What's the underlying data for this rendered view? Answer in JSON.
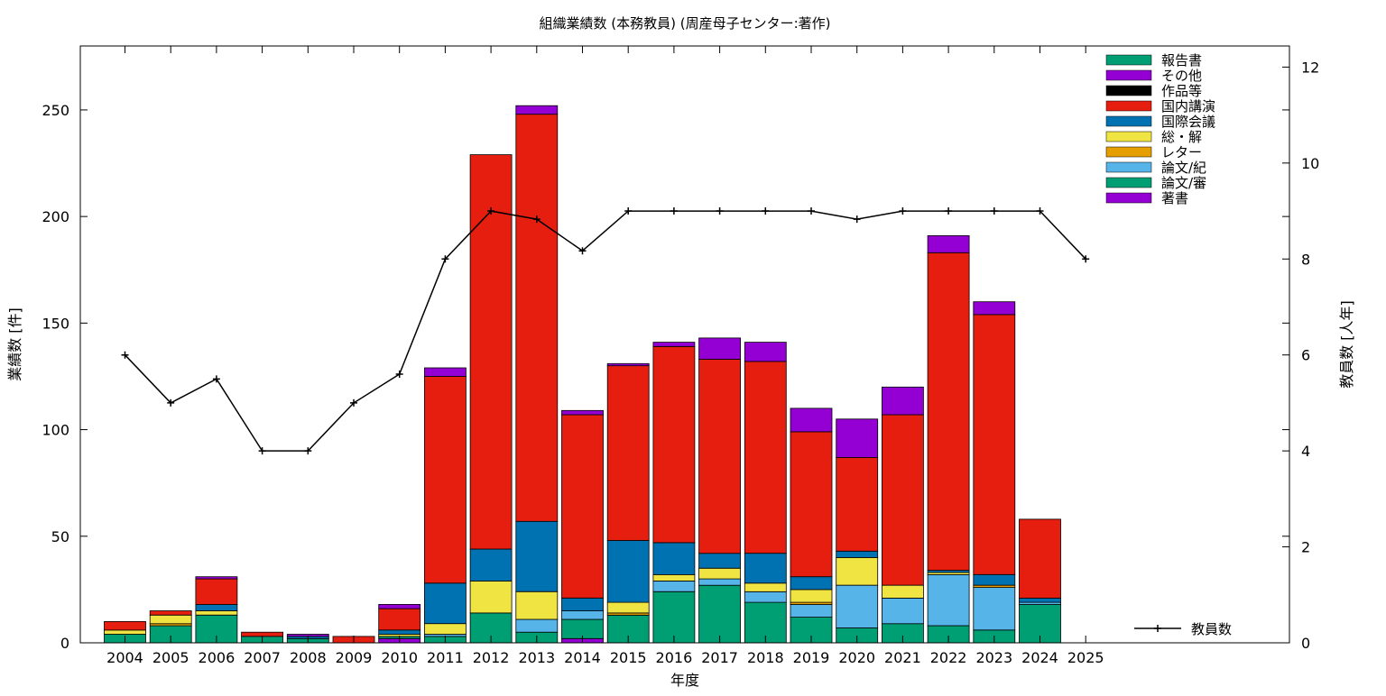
{
  "chart_data": {
    "type": "bar",
    "subtype": "stacked-bar-with-line",
    "title": "組織業績数 (本務教員) (周産母子センター:著作)",
    "xlabel": "年度",
    "ylabel": "業績数 [件]",
    "y2label": "教員数 [人年]",
    "ylim": [
      0,
      280
    ],
    "y2lim": [
      0,
      12.44
    ],
    "yticks": [
      "0",
      "50",
      "100",
      "150",
      "200",
      "250"
    ],
    "y2ticks": [
      "0",
      "2",
      "4",
      "6",
      "8",
      "10",
      "12"
    ],
    "categories": [
      "2004",
      "2005",
      "2006",
      "2007",
      "2008",
      "2009",
      "2010",
      "2011",
      "2012",
      "2013",
      "2014",
      "2015",
      "2016",
      "2017",
      "2018",
      "2019",
      "2020",
      "2021",
      "2022",
      "2023",
      "2024",
      "2025"
    ],
    "legend_position": "top-right",
    "series": [
      {
        "name": "著書",
        "color": "#9400D3",
        "values": [
          0,
          0,
          0,
          0,
          0,
          0,
          2,
          0,
          0,
          0,
          2,
          0,
          0,
          0,
          0,
          0,
          0,
          0,
          0,
          0,
          0,
          0
        ]
      },
      {
        "name": "論文/審",
        "color": "#009E73",
        "values": [
          4,
          8,
          13,
          3,
          2,
          0,
          1,
          3,
          14,
          5,
          9,
          13,
          24,
          27,
          19,
          12,
          7,
          9,
          8,
          6,
          18,
          0
        ]
      },
      {
        "name": "論文/紀",
        "color": "#56B4E9",
        "values": [
          0,
          0,
          0,
          0,
          0,
          0,
          0,
          1,
          0,
          6,
          4,
          0,
          5,
          3,
          5,
          6,
          20,
          12,
          24,
          20,
          1,
          0
        ]
      },
      {
        "name": "レター",
        "color": "#E69F00",
        "values": [
          0,
          1,
          0,
          0,
          0,
          0,
          0,
          0,
          0,
          0,
          0,
          1,
          0,
          0,
          0,
          1,
          0,
          0,
          0,
          1,
          0,
          0
        ]
      },
      {
        "name": "総・解",
        "color": "#F0E442",
        "values": [
          2,
          4,
          2,
          0,
          0,
          0,
          1,
          5,
          15,
          13,
          0,
          5,
          3,
          5,
          4,
          6,
          13,
          6,
          1,
          0,
          0,
          0
        ]
      },
      {
        "name": "国際会議",
        "color": "#0072B2",
        "values": [
          0,
          0,
          3,
          0,
          1,
          0,
          2,
          19,
          15,
          33,
          6,
          29,
          15,
          7,
          14,
          6,
          3,
          0,
          1,
          5,
          2,
          0
        ]
      },
      {
        "name": "国内講演",
        "color": "#E51E10",
        "values": [
          4,
          2,
          12,
          2,
          0,
          3,
          10,
          97,
          185,
          191,
          86,
          82,
          92,
          91,
          90,
          68,
          44,
          80,
          149,
          122,
          37,
          0
        ]
      },
      {
        "name": "作品等",
        "color": "#000000",
        "values": [
          0,
          0,
          0,
          0,
          0,
          0,
          0,
          0,
          0,
          0,
          0,
          0,
          0,
          0,
          0,
          0,
          0,
          0,
          0,
          0,
          0,
          0
        ]
      },
      {
        "name": "その他",
        "color": "#9400D3",
        "values": [
          0,
          0,
          1,
          0,
          1,
          0,
          2,
          4,
          0,
          4,
          2,
          1,
          2,
          10,
          9,
          11,
          18,
          13,
          8,
          6,
          0,
          0
        ]
      },
      {
        "name": "報告書",
        "color": "#009E73",
        "values": [
          0,
          0,
          0,
          0,
          0,
          0,
          0,
          0,
          0,
          0,
          0,
          0,
          0,
          0,
          0,
          0,
          0,
          0,
          0,
          0,
          0,
          0
        ]
      }
    ],
    "legend_order": [
      "報告書",
      "その他",
      "作品等",
      "国内講演",
      "国際会議",
      "総・解",
      "レター",
      "論文/紀",
      "論文/審",
      "著書"
    ],
    "line": {
      "name": "教員数",
      "color": "#000000",
      "values": [
        6,
        5,
        5.5,
        4,
        4,
        5,
        5.6,
        8,
        9,
        8.83,
        8.17,
        9,
        9,
        9,
        9,
        9,
        8.83,
        9,
        9,
        9,
        9,
        8
      ]
    }
  }
}
